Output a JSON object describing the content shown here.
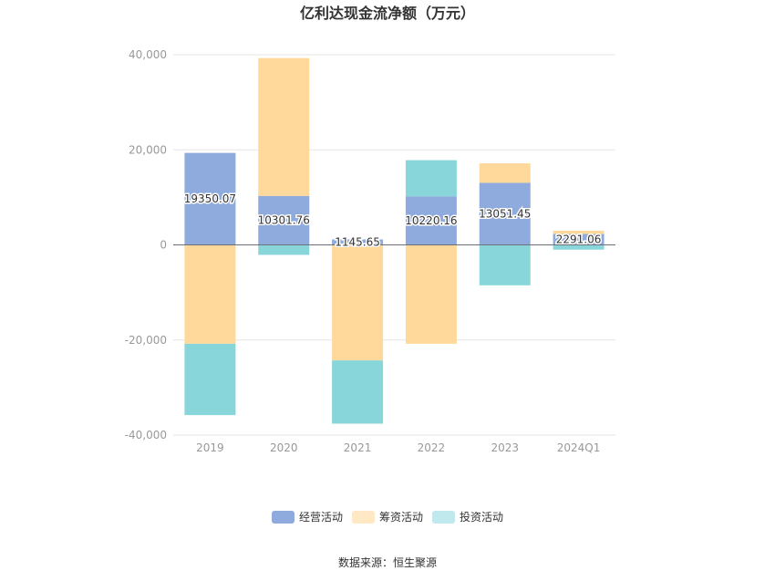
{
  "chart_data": {
    "type": "bar",
    "stacked": true,
    "title": "亿利达现金流净额（万元）",
    "categories": [
      "2019",
      "2020",
      "2021",
      "2022",
      "2023",
      "2024Q1"
    ],
    "series": [
      {
        "name": "经营活动",
        "color": "#8FAADC",
        "values": [
          19350.07,
          10301.76,
          1145.65,
          10220.16,
          13051.45,
          2291.06
        ]
      },
      {
        "name": "筹资活动",
        "color": "#FFD99B",
        "values": [
          -20800,
          29000,
          -24300,
          -20800,
          4100,
          700
        ]
      },
      {
        "name": "投资活动",
        "color": "#88D6DA",
        "values": [
          -15000,
          -2100,
          -13300,
          7600,
          -8500,
          -1000
        ]
      }
    ],
    "data_labels": [
      "19350.07",
      "10301.76",
      "1145.65",
      "10220.16",
      "13051.45",
      "2291.06"
    ],
    "ylim": [
      -40000,
      40000
    ],
    "yticks": [
      40000,
      20000,
      0,
      -20000,
      -40000
    ],
    "ytick_labels": [
      "40,000",
      "20,000",
      "0",
      "-20,000",
      "-40,000"
    ],
    "grid": true,
    "legend_position": "bottom",
    "legend_colors": [
      "#8FAADC",
      "#FFE8C4",
      "#BFE9EC"
    ]
  },
  "source": "数据来源：恒生聚源"
}
